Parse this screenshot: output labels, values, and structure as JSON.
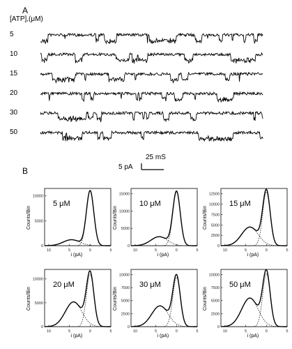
{
  "panel_a": {
    "label": "A",
    "axis_title": "[ATP],(μM)",
    "traces": [
      {
        "conc": "5",
        "open_level": 0.25
      },
      {
        "conc": "10",
        "open_level": 0.35
      },
      {
        "conc": "15",
        "open_level": 0.45
      },
      {
        "conc": "20",
        "open_level": 0.55
      },
      {
        "conc": "30",
        "open_level": 0.6
      },
      {
        "conc": "50",
        "open_level": 0.65
      }
    ],
    "scale_bar": {
      "time": "25 mS",
      "current": "5 pA"
    }
  },
  "panel_b": {
    "label": "B"
  },
  "chart_data": [
    {
      "type": "line",
      "title": "5 μM",
      "xlabel": "i (pA)",
      "ylabel": "Counts/Bin",
      "x_ticks": [
        "10",
        "5",
        "0",
        "5"
      ],
      "y_ticks": [
        "0",
        "5000",
        "10000"
      ],
      "ylim": [
        0,
        11500
      ],
      "xlim": [
        -11,
        5
      ],
      "series": [
        {
          "values": {
            "open_peak_x": -4.5,
            "open_peak_y": 1200,
            "closed_peak_x": 0,
            "closed_peak_y": 11000
          }
        }
      ]
    },
    {
      "type": "line",
      "title": "10 μM",
      "xlabel": "i (pA)",
      "ylabel": "Counts/Bin",
      "x_ticks": [
        "10",
        "5",
        "0",
        "5"
      ],
      "y_ticks": [
        "0",
        "5000",
        "10000",
        "15000"
      ],
      "ylim": [
        0,
        16500
      ],
      "xlim": [
        -11,
        5
      ],
      "series": [
        {
          "values": {
            "open_peak_x": -4.2,
            "open_peak_y": 2600,
            "closed_peak_x": 0,
            "closed_peak_y": 15500
          }
        }
      ]
    },
    {
      "type": "line",
      "title": "15 μM",
      "xlabel": "i (pA)",
      "ylabel": "Counts/Bin",
      "x_ticks": [
        "10",
        "5",
        "0",
        "5"
      ],
      "y_ticks": [
        "0",
        "2500",
        "5000",
        "7500",
        "10000",
        "12500"
      ],
      "ylim": [
        0,
        13800
      ],
      "xlim": [
        -11,
        5
      ],
      "series": [
        {
          "values": {
            "open_peak_x": -4.0,
            "open_peak_y": 4500,
            "closed_peak_x": 0,
            "closed_peak_y": 13000
          }
        }
      ]
    },
    {
      "type": "line",
      "title": "20 μM",
      "xlabel": "i (pA)",
      "ylabel": "Counts/Bin",
      "x_ticks": [
        "10",
        "5",
        "0",
        "5"
      ],
      "y_ticks": [
        "0",
        "5000",
        "10000"
      ],
      "ylim": [
        0,
        12000
      ],
      "xlim": [
        -11,
        5
      ],
      "series": [
        {
          "values": {
            "open_peak_x": -4.0,
            "open_peak_y": 5200,
            "closed_peak_x": 0,
            "closed_peak_y": 11000
          }
        }
      ]
    },
    {
      "type": "line",
      "title": "30 μM",
      "xlabel": "i (pA)",
      "ylabel": "Counts/Bin",
      "x_ticks": [
        "10",
        "5",
        "0",
        "5"
      ],
      "y_ticks": [
        "0",
        "2500",
        "5000",
        "7500",
        "10000"
      ],
      "ylim": [
        0,
        11000
      ],
      "xlim": [
        -11,
        5
      ],
      "series": [
        {
          "values": {
            "open_peak_x": -4.0,
            "open_peak_y": 4000,
            "closed_peak_x": 0,
            "closed_peak_y": 9500
          }
        }
      ]
    },
    {
      "type": "line",
      "title": "50 μM",
      "xlabel": "i (pA)",
      "ylabel": "Counts/Bin",
      "x_ticks": [
        "10",
        "5",
        "0",
        "5"
      ],
      "y_ticks": [
        "0",
        "2500",
        "5000",
        "7500",
        "10000"
      ],
      "ylim": [
        0,
        11000
      ],
      "xlim": [
        -11,
        5
      ],
      "series": [
        {
          "values": {
            "open_peak_x": -4.0,
            "open_peak_y": 5500,
            "closed_peak_x": 0,
            "closed_peak_y": 10200
          }
        }
      ]
    }
  ]
}
